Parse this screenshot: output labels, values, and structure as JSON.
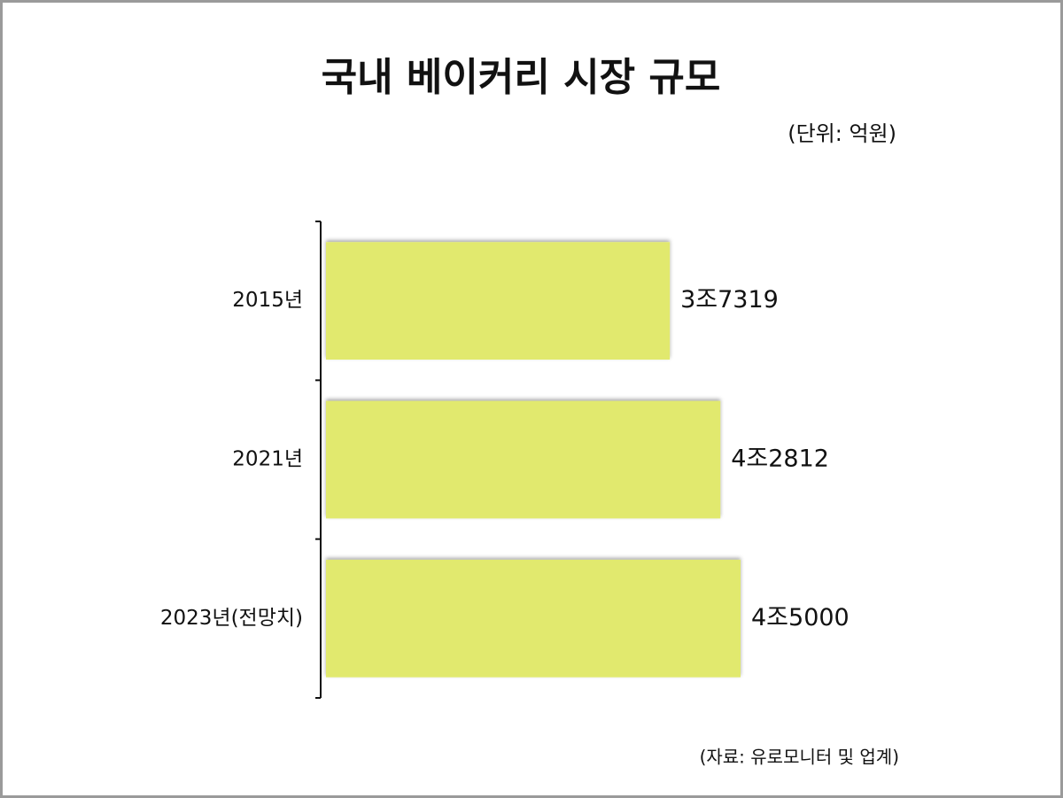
{
  "chart_data": {
    "type": "bar",
    "orientation": "horizontal",
    "title": "국내 베이커리 시장 규모",
    "unit_note": "(단위: 억원)",
    "source": "(자료: 유로모니터 및 업계)",
    "categories": [
      "2015년",
      "2021년",
      "2023년(전망치)"
    ],
    "values": [
      37319,
      42812,
      45000
    ],
    "value_labels": [
      "3조7319",
      "4조2812",
      "4조5000"
    ],
    "color": "#e1e96e"
  }
}
